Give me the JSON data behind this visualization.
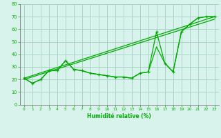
{
  "xlabel": "Humidité relative (%)",
  "xlim": [
    -0.5,
    23.5
  ],
  "ylim": [
    0,
    80
  ],
  "yticks": [
    0,
    10,
    20,
    30,
    40,
    50,
    60,
    70,
    80
  ],
  "xticks": [
    0,
    1,
    2,
    3,
    4,
    5,
    6,
    7,
    8,
    9,
    10,
    11,
    12,
    13,
    14,
    15,
    16,
    17,
    18,
    19,
    20,
    21,
    22,
    23
  ],
  "background_color": "#d8f2ec",
  "grid_color": "#aad4c8",
  "line_color": "#00aa00",
  "line_main": [
    21,
    17,
    20,
    27,
    27,
    35,
    28,
    27,
    25,
    24,
    23,
    22,
    22,
    21,
    25,
    26,
    58,
    33,
    26,
    58,
    64,
    69,
    70,
    70
  ],
  "line_smooth": [
    21,
    17,
    20,
    27,
    27,
    35,
    28,
    27,
    25,
    24,
    23,
    22,
    22,
    21,
    25,
    26,
    46,
    33,
    26,
    58,
    64,
    69,
    70,
    70
  ],
  "trend1_x": [
    0,
    23
  ],
  "trend1_y": [
    21,
    70
  ],
  "trend2_x": [
    0,
    23
  ],
  "trend2_y": [
    20,
    68
  ]
}
